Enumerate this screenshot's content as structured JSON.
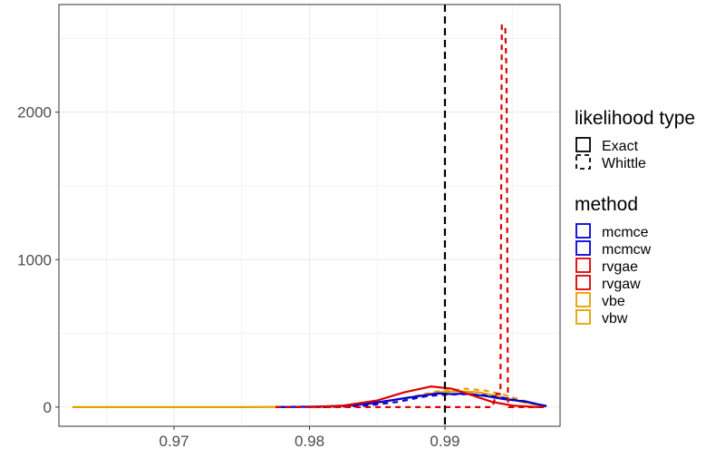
{
  "chart_data": {
    "type": "line",
    "title": "",
    "xlabel": "",
    "ylabel": "",
    "xlim": [
      0.9615,
      0.9985
    ],
    "ylim": [
      -130,
      2730
    ],
    "x_ticks": [
      0.97,
      0.98,
      0.99
    ],
    "x_tick_labels": [
      "0.97",
      "0.98",
      "0.99"
    ],
    "y_ticks": [
      0,
      1000,
      2000
    ],
    "y_tick_labels": [
      "0",
      "1000",
      "2000"
    ],
    "grid": true,
    "legend_position": "right",
    "reference_line": {
      "x": 0.99,
      "color": "#000000",
      "linetype": "dashed"
    },
    "legend": {
      "linetype_title": "likelihood type",
      "linetype_entries": [
        {
          "label": "Exact",
          "linetype": "solid"
        },
        {
          "label": "Whittle",
          "linetype": "dashed"
        }
      ],
      "method_title": "method",
      "method_entries": [
        {
          "label": "mcmce",
          "color": "#0000dd"
        },
        {
          "label": "mcmcw",
          "color": "#0000dd"
        },
        {
          "label": "rvgae",
          "color": "#dd0000"
        },
        {
          "label": "rvgaw",
          "color": "#dd0000"
        },
        {
          "label": "vbe",
          "color": "#e69f00"
        },
        {
          "label": "vbw",
          "color": "#e69f00"
        }
      ]
    },
    "series": [
      {
        "method": "vbe",
        "color": "#e69f00",
        "linetype": "solid",
        "points": [
          [
            0.9625,
            0
          ],
          [
            0.975,
            0
          ],
          [
            0.98,
            2
          ],
          [
            0.983,
            10
          ],
          [
            0.9855,
            35
          ],
          [
            0.988,
            75
          ],
          [
            0.9895,
            100
          ],
          [
            0.991,
            108
          ],
          [
            0.9925,
            100
          ],
          [
            0.994,
            72
          ],
          [
            0.9955,
            38
          ],
          [
            0.997,
            12
          ],
          [
            0.9975,
            6
          ]
        ]
      },
      {
        "method": "vbw",
        "color": "#e69f00",
        "linetype": "dashed",
        "points": [
          [
            0.9775,
            0
          ],
          [
            0.981,
            3
          ],
          [
            0.9845,
            22
          ],
          [
            0.987,
            60
          ],
          [
            0.9895,
            108
          ],
          [
            0.9915,
            125
          ],
          [
            0.993,
            112
          ],
          [
            0.9945,
            80
          ],
          [
            0.996,
            38
          ],
          [
            0.997,
            12
          ],
          [
            0.9975,
            5
          ]
        ]
      },
      {
        "method": "mcmce",
        "color": "#0000dd",
        "linetype": "solid",
        "points": [
          [
            0.9775,
            0
          ],
          [
            0.982,
            5
          ],
          [
            0.9845,
            25
          ],
          [
            0.987,
            60
          ],
          [
            0.9885,
            80
          ],
          [
            0.9895,
            93
          ],
          [
            0.9905,
            88
          ],
          [
            0.9915,
            92
          ],
          [
            0.993,
            75
          ],
          [
            0.9945,
            52
          ],
          [
            0.996,
            38
          ],
          [
            0.9975,
            6
          ]
        ]
      },
      {
        "method": "mcmcw",
        "color": "#0000dd",
        "linetype": "dashed",
        "points": [
          [
            0.981,
            0
          ],
          [
            0.984,
            8
          ],
          [
            0.9865,
            35
          ],
          [
            0.9885,
            72
          ],
          [
            0.99,
            85
          ],
          [
            0.9915,
            88
          ],
          [
            0.993,
            80
          ],
          [
            0.9945,
            60
          ],
          [
            0.996,
            35
          ],
          [
            0.9975,
            8
          ]
        ]
      },
      {
        "method": "rvgae",
        "color": "#dd0000",
        "linetype": "solid",
        "points": [
          [
            0.98,
            0
          ],
          [
            0.9825,
            10
          ],
          [
            0.985,
            45
          ],
          [
            0.987,
            100
          ],
          [
            0.989,
            140
          ],
          [
            0.9905,
            125
          ],
          [
            0.992,
            80
          ],
          [
            0.9935,
            35
          ],
          [
            0.995,
            10
          ],
          [
            0.9965,
            2
          ],
          [
            0.997,
            0
          ]
        ]
      },
      {
        "method": "rvgaw",
        "color": "#dd0000",
        "linetype": "dashed",
        "points": [
          [
            0.9775,
            0
          ],
          [
            0.9935,
            0
          ],
          [
            0.9938,
            90
          ],
          [
            0.9941,
            90
          ],
          [
            0.9942,
            2590
          ],
          [
            0.99445,
            2580
          ],
          [
            0.99455,
            2260
          ],
          [
            0.99465,
            50
          ],
          [
            0.9947,
            0
          ],
          [
            0.9975,
            0
          ]
        ]
      }
    ]
  }
}
